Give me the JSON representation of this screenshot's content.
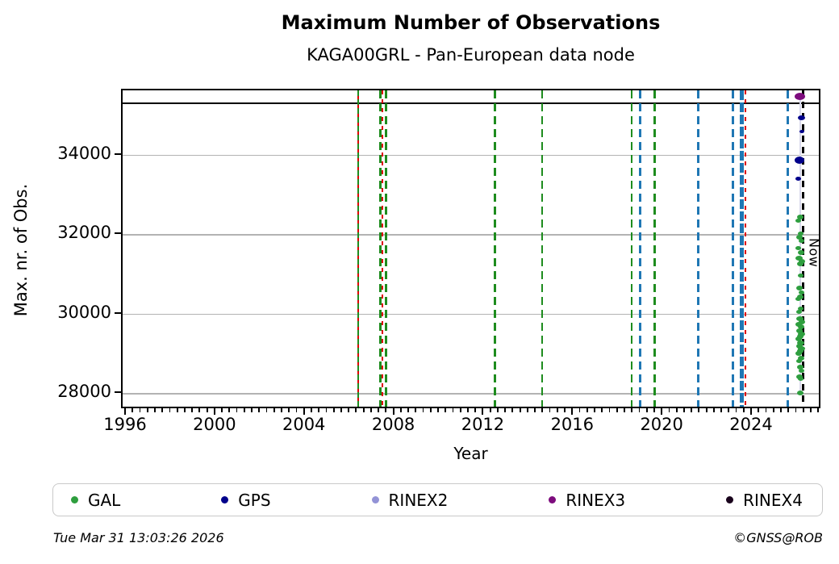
{
  "chart_data": {
    "type": "scatter",
    "title": "Maximum Number of Observations",
    "subtitle": "KAGA00GRL - Pan-European data node",
    "xlabel": "Year",
    "ylabel": "Max. nr. of Obs.",
    "now_label": "Now",
    "xlim": [
      1995.8,
      2027.1
    ],
    "ylim": [
      27590,
      35640
    ],
    "x_major_ticks": [
      "1996",
      "2000",
      "2004",
      "2008",
      "2012",
      "2016",
      "2020",
      "2024"
    ],
    "x_major_tick_years": [
      1996,
      2000,
      2004,
      2008,
      2012,
      2016,
      2020,
      2024
    ],
    "y_ticks": [
      28000,
      30000,
      32000,
      34000
    ],
    "grid": "horizontal-only",
    "grid_color": "#b3b3b3",
    "legend_position": "bottom",
    "max_line": {
      "value": 35315,
      "color": "#000000",
      "style": "solid"
    },
    "now_line": {
      "year": 2026.25,
      "color": "#000000",
      "style": "dashed"
    },
    "line_colors": {
      "green": "#1e8c1e",
      "blue": "#1f77b4",
      "red": "#dd0000",
      "black": "#000000"
    },
    "event_lines": [
      {
        "year": 2006.35,
        "style": "green-red",
        "width": 2.5
      },
      {
        "year": 2007.33,
        "style": "green",
        "width": 3
      },
      {
        "year": 2007.45,
        "style": "red",
        "width": 2
      },
      {
        "year": 2007.6,
        "style": "green",
        "width": 3
      },
      {
        "year": 2012.48,
        "style": "green",
        "width": 2.5
      },
      {
        "year": 2014.58,
        "style": "green",
        "width": 2.5
      },
      {
        "year": 2018.58,
        "style": "green",
        "width": 2.5
      },
      {
        "year": 2018.95,
        "style": "blue",
        "width": 3
      },
      {
        "year": 2019.62,
        "style": "green",
        "width": 2.5
      },
      {
        "year": 2021.57,
        "style": "blue",
        "width": 3
      },
      {
        "year": 2023.13,
        "style": "blue",
        "width": 3
      },
      {
        "year": 2023.52,
        "style": "blue-thick",
        "width": 5.5
      },
      {
        "year": 2023.68,
        "style": "red",
        "width": 2
      },
      {
        "year": 2025.58,
        "style": "blue",
        "width": 3
      }
    ],
    "connector": {
      "year": 2026.12,
      "from": 35480,
      "to": 28020,
      "color": "#d9d9ec"
    },
    "series": [
      {
        "name": "GAL",
        "color": "#2e9e3e",
        "points": [
          [
            2026.12,
            32450,
            8
          ],
          [
            2026.05,
            32350,
            7
          ],
          [
            2026.16,
            32040,
            7
          ],
          [
            2026.08,
            31940,
            8
          ],
          [
            2026.19,
            31860,
            7
          ],
          [
            2026.05,
            31660,
            7
          ],
          [
            2026.16,
            31560,
            8
          ],
          [
            2026.08,
            31410,
            9
          ],
          [
            2026.19,
            31330,
            8
          ],
          [
            2026.12,
            31270,
            8
          ],
          [
            2026.16,
            30970,
            7
          ],
          [
            2026.08,
            30660,
            8
          ],
          [
            2026.19,
            30560,
            7
          ],
          [
            2026.12,
            30440,
            8
          ],
          [
            2026.05,
            30380,
            7
          ],
          [
            2026.16,
            30150,
            7
          ],
          [
            2026.08,
            30070,
            7
          ],
          [
            2026.12,
            29890,
            9
          ],
          [
            2026.19,
            29810,
            8
          ],
          [
            2026.05,
            29750,
            8
          ],
          [
            2026.16,
            29690,
            8
          ],
          [
            2026.08,
            29580,
            8
          ],
          [
            2026.19,
            29500,
            9
          ],
          [
            2026.12,
            29440,
            8
          ],
          [
            2026.05,
            29380,
            8
          ],
          [
            2026.16,
            29280,
            9
          ],
          [
            2026.08,
            29200,
            8
          ],
          [
            2026.19,
            29140,
            9
          ],
          [
            2026.12,
            29080,
            8
          ],
          [
            2026.05,
            29020,
            8
          ],
          [
            2026.16,
            28890,
            8
          ],
          [
            2026.08,
            28830,
            7
          ],
          [
            2026.12,
            28670,
            8
          ],
          [
            2026.19,
            28590,
            7
          ],
          [
            2026.08,
            28430,
            8
          ],
          [
            2026.16,
            28370,
            7
          ],
          [
            2026.12,
            28020,
            8
          ]
        ]
      },
      {
        "name": "GPS",
        "color": "#00008b",
        "points": [
          [
            2026.19,
            34950,
            9
          ],
          [
            2026.19,
            34600,
            6
          ],
          [
            2026.08,
            33890,
            12
          ],
          [
            2026.05,
            33425,
            7
          ]
        ]
      },
      {
        "name": "RINEX2",
        "color": "#9393d6",
        "points": []
      },
      {
        "name": "RINEX3",
        "color": "#7d0c7d",
        "points": [
          [
            2026.12,
            35480,
            13
          ]
        ]
      },
      {
        "name": "RINEX4",
        "color": "#19021c",
        "points": []
      }
    ]
  },
  "footer": {
    "timestamp": "Tue Mar 31 13:03:26 2026",
    "credit": "©GNSS@ROB"
  }
}
